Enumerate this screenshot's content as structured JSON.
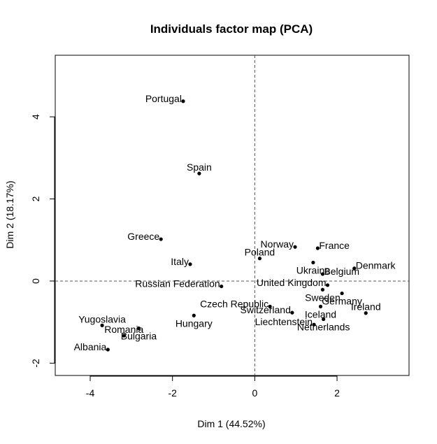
{
  "chart_data": {
    "type": "scatter",
    "title": "Individuals factor map (PCA)",
    "xlabel": "Dim 1 (44.52%)",
    "ylabel": "Dim 2 (18.17%)",
    "xlim": [
      -4.85,
      3.75
    ],
    "ylim": [
      -2.3,
      5.5
    ],
    "xticks": [
      -4,
      -2,
      0,
      2
    ],
    "yticks": [
      -2,
      0,
      2,
      4
    ],
    "reference_lines": {
      "x": 0,
      "y": 0
    },
    "points": [
      {
        "label": "Portugal",
        "x": -1.74,
        "y": 4.38,
        "pos": "left"
      },
      {
        "label": "Spain",
        "x": -1.35,
        "y": 2.62,
        "pos": "above"
      },
      {
        "label": "Greece",
        "x": -2.28,
        "y": 1.02,
        "pos": "left"
      },
      {
        "label": "Italy",
        "x": -1.57,
        "y": 0.41,
        "pos": "left"
      },
      {
        "label": "Russian Federation",
        "x": -0.81,
        "y": -0.13,
        "pos": "left"
      },
      {
        "label": "Czech Republic",
        "x": 0.37,
        "y": -0.62,
        "pos": "left"
      },
      {
        "label": "Hungary",
        "x": -1.48,
        "y": -0.84,
        "pos": "below"
      },
      {
        "label": "Yugoslavia",
        "x": -3.71,
        "y": -1.08,
        "pos": "above"
      },
      {
        "label": "Romania",
        "x": -3.18,
        "y": -1.33,
        "pos": "above"
      },
      {
        "label": "Bulgaria",
        "x": -2.82,
        "y": -1.15,
        "pos": "below"
      },
      {
        "label": "Albania",
        "x": -3.57,
        "y": -1.67,
        "pos": "left"
      },
      {
        "label": "Norway",
        "x": 0.98,
        "y": 0.83,
        "pos": "left"
      },
      {
        "label": "France",
        "x": 1.53,
        "y": 0.8,
        "pos": "right"
      },
      {
        "label": "Poland",
        "x": 0.12,
        "y": 0.55,
        "pos": "above"
      },
      {
        "label": "Ukraine",
        "x": 1.42,
        "y": 0.45,
        "pos": "below"
      },
      {
        "label": "Denmark",
        "x": 2.42,
        "y": 0.31,
        "pos": "right"
      },
      {
        "label": "Belgium",
        "x": 1.65,
        "y": 0.17,
        "pos": "right"
      },
      {
        "label": "United Kingdom",
        "x": 1.77,
        "y": -0.1,
        "pos": "left"
      },
      {
        "label": "Germany",
        "x": 2.12,
        "y": -0.3,
        "pos": "below"
      },
      {
        "label": "Sweden",
        "x": 1.65,
        "y": -0.21,
        "pos": "below"
      },
      {
        "label": "Switzerland",
        "x": 0.91,
        "y": -0.77,
        "pos": "left"
      },
      {
        "label": "Iceland",
        "x": 1.6,
        "y": -0.62,
        "pos": "below"
      },
      {
        "label": "Ireland",
        "x": 2.7,
        "y": -0.78,
        "pos": "above"
      },
      {
        "label": "Liechtenstein",
        "x": 1.44,
        "y": -1.06,
        "pos": "left"
      },
      {
        "label": "Netherlands",
        "x": 1.67,
        "y": -0.93,
        "pos": "below"
      }
    ]
  }
}
